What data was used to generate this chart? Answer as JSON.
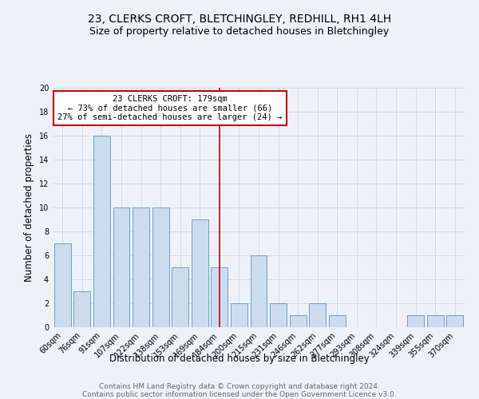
{
  "title": "23, CLERKS CROFT, BLETCHINGLEY, REDHILL, RH1 4LH",
  "subtitle": "Size of property relative to detached houses in Bletchingley",
  "xlabel": "Distribution of detached houses by size in Bletchingley",
  "ylabel": "Number of detached properties",
  "bar_labels": [
    "60sqm",
    "76sqm",
    "91sqm",
    "107sqm",
    "122sqm",
    "138sqm",
    "153sqm",
    "169sqm",
    "184sqm",
    "200sqm",
    "215sqm",
    "231sqm",
    "246sqm",
    "262sqm",
    "277sqm",
    "293sqm",
    "308sqm",
    "324sqm",
    "339sqm",
    "355sqm",
    "370sqm"
  ],
  "bar_values": [
    7,
    3,
    16,
    10,
    10,
    10,
    5,
    9,
    5,
    2,
    6,
    2,
    1,
    2,
    1,
    0,
    0,
    0,
    1,
    1,
    1
  ],
  "bar_color": "#ccdcee",
  "bar_edge_color": "#6a9fc8",
  "annotation_text_line1": "23 CLERKS CROFT: 179sqm",
  "annotation_text_line2": "← 73% of detached houses are smaller (66)",
  "annotation_text_line3": "27% of semi-detached houses are larger (24) →",
  "annotation_box_color": "#ffffff",
  "annotation_box_edge": "#cc0000",
  "vline_color": "#cc0000",
  "grid_color": "#c8d8e8",
  "background_color": "#eef2f8",
  "ylim": [
    0,
    20
  ],
  "yticks": [
    0,
    2,
    4,
    6,
    8,
    10,
    12,
    14,
    16,
    18,
    20
  ],
  "footer_line1": "Contains HM Land Registry data © Crown copyright and database right 2024.",
  "footer_line2": "Contains public sector information licensed under the Open Government Licence v3.0.",
  "title_fontsize": 10,
  "subtitle_fontsize": 9,
  "xlabel_fontsize": 8.5,
  "ylabel_fontsize": 8.5,
  "tick_fontsize": 7,
  "annot_fontsize": 7.5,
  "footer_fontsize": 6.5,
  "vline_x_idx": 8
}
